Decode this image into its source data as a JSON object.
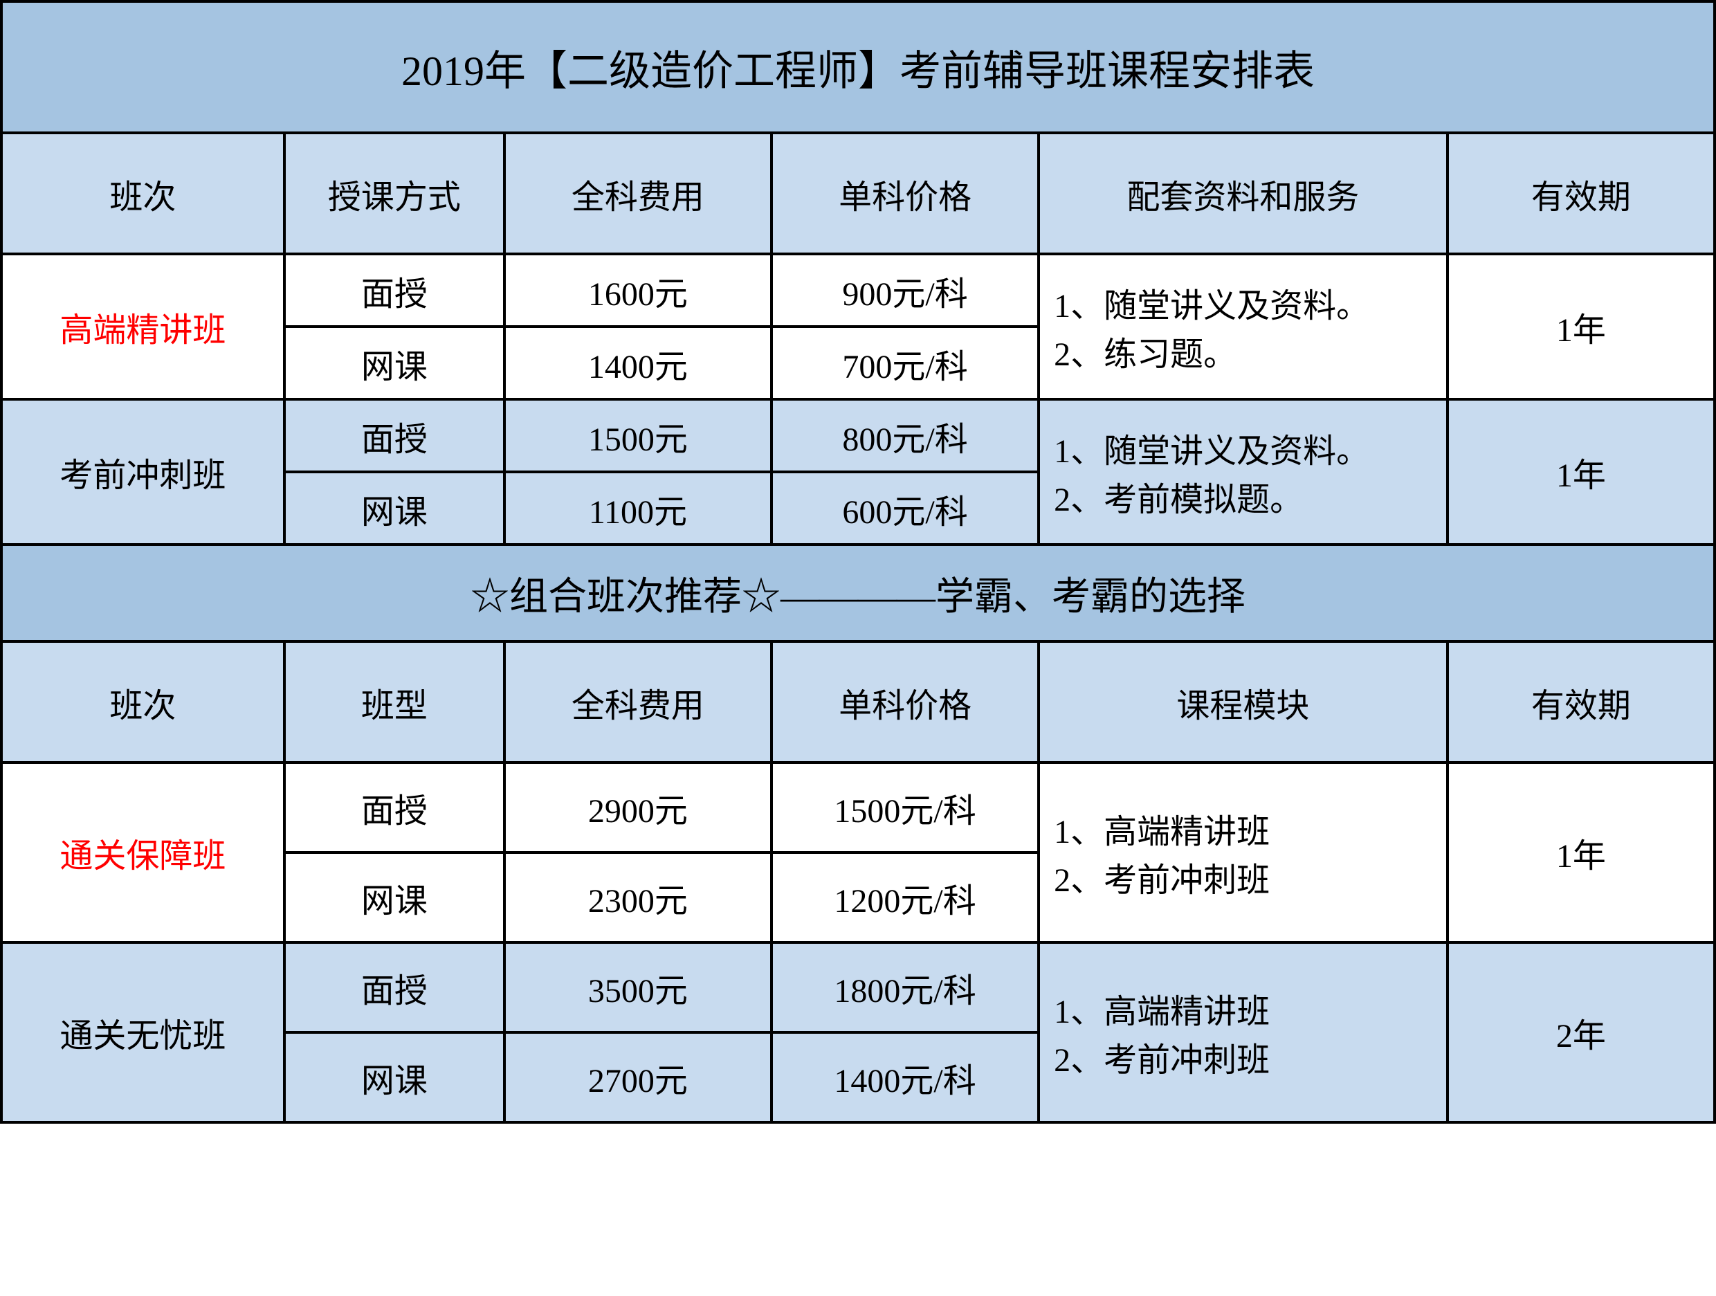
{
  "colors": {
    "title_bg": "#a5c4e1",
    "header_bg": "#c8dbef",
    "white_bg": "#ffffff",
    "border": "#000000",
    "red": "#ff0000",
    "black": "#000000"
  },
  "fonts": {
    "title_size": 60,
    "subtitle_size": 56,
    "body_size": 48
  },
  "title": "2019年【二级造价工程师】考前辅导班课程安排表",
  "headers1": {
    "col1": "班次",
    "col2": "授课方式",
    "col3": "全科费用",
    "col4": "单科价格",
    "col5": "配套资料和服务",
    "col6": "有效期"
  },
  "section1": {
    "row1": {
      "class_name": "高端精讲班",
      "mode1": "面授",
      "full_price1": "1600元",
      "single_price1": "900元/科",
      "mode2": "网课",
      "full_price2": "1400元",
      "single_price2": "700元/科",
      "materials": "1、随堂讲义及资料。　　2、练习题。",
      "validity": "1年"
    },
    "row2": {
      "class_name": "考前冲刺班",
      "mode1": "面授",
      "full_price1": "1500元",
      "single_price1": "800元/科",
      "mode2": "网课",
      "full_price2": "1100元",
      "single_price2": "600元/科",
      "materials": "1、随堂讲义及资料。　　2、考前模拟题。",
      "validity": "1年"
    }
  },
  "subtitle": "☆组合班次推荐☆————学霸、考霸的选择",
  "headers2": {
    "col1": "班次",
    "col2": "班型",
    "col3": "全科费用",
    "col4": "单科价格",
    "col5": "课程模块",
    "col6": "有效期"
  },
  "section2": {
    "row1": {
      "class_name": "通关保障班",
      "mode1": "面授",
      "full_price1": "2900元",
      "single_price1": "1500元/科",
      "mode2": "网课",
      "full_price2": "2300元",
      "single_price2": "1200元/科",
      "modules_line1": "1、高端精讲班",
      "modules_line2": "2、考前冲刺班",
      "validity": "1年"
    },
    "row2": {
      "class_name": "通关无忧班",
      "mode1": "面授",
      "full_price1": "3500元",
      "single_price1": "1800元/科",
      "mode2": "网课",
      "full_price2": "2700元",
      "single_price2": "1400元/科",
      "modules_line1": "1、高端精讲班",
      "modules_line2": "2、考前冲刺班",
      "validity": "2年"
    }
  }
}
